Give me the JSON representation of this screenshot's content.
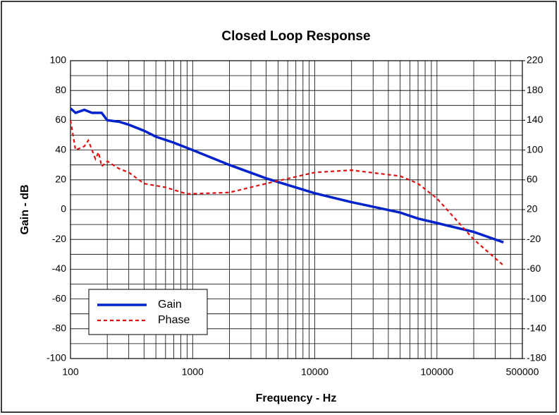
{
  "chart_data": {
    "type": "line",
    "title": "Closed Loop Response",
    "xlabel": "Frequency - Hz",
    "ylabel": "Gain - dB",
    "xscale": "log",
    "xlim": [
      100,
      500000
    ],
    "xticks": [
      100,
      1000,
      10000,
      100000,
      500000
    ],
    "xminorticks": [
      200,
      300,
      400,
      500,
      600,
      700,
      800,
      900,
      2000,
      3000,
      4000,
      5000,
      6000,
      7000,
      8000,
      9000,
      20000,
      30000,
      40000,
      50000,
      60000,
      70000,
      80000,
      90000,
      200000,
      300000,
      400000
    ],
    "ylim": [
      -100,
      100
    ],
    "yticks": [
      -100,
      -80,
      -60,
      -40,
      -20,
      0,
      20,
      40,
      60,
      80,
      100
    ],
    "yminorticks": [
      -90,
      -70,
      -50,
      -30,
      -10,
      10,
      30,
      50,
      70,
      90
    ],
    "y2lim": [
      -180,
      220
    ],
    "y2ticks": [
      -180,
      -140,
      -100,
      -60,
      -20,
      20,
      60,
      100,
      140,
      180,
      220
    ],
    "grid": true,
    "legend": "lower left",
    "series": [
      {
        "name": "Gain",
        "color": "#0022cc",
        "style": "solid",
        "x": [
          100,
          110,
          130,
          150,
          180,
          200,
          250,
          300,
          400,
          500,
          700,
          1000,
          2000,
          4000,
          10000,
          20000,
          50000,
          70000,
          100000,
          200000,
          350000
        ],
        "values": [
          68,
          65,
          67,
          65,
          65,
          60,
          59,
          57,
          53,
          49,
          45,
          40,
          30,
          21,
          11,
          5,
          -2,
          -6,
          -9,
          -15,
          -22
        ]
      },
      {
        "name": "Phase",
        "color": "#dd1111",
        "style": "dashed",
        "axis": "y2",
        "x": [
          100,
          110,
          130,
          140,
          160,
          170,
          180,
          200,
          250,
          300,
          400,
          600,
          900,
          2000,
          4000,
          10000,
          20000,
          50000,
          70000,
          100000,
          200000,
          350000
        ],
        "values": [
          140,
          100,
          105,
          113,
          88,
          97,
          78,
          85,
          75,
          70,
          55,
          50,
          41,
          43,
          55,
          70,
          73,
          65,
          55,
          35,
          -20,
          -55
        ]
      }
    ]
  }
}
